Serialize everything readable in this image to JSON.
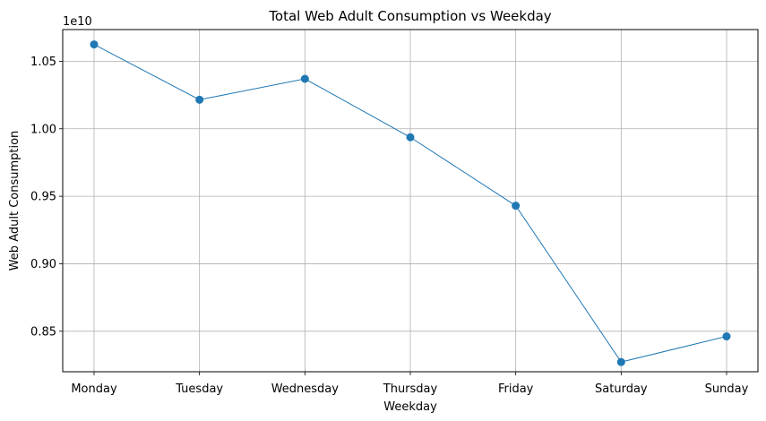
{
  "chart_data": {
    "type": "line",
    "title": "Total Web Adult Consumption vs Weekday",
    "xlabel": "Weekday",
    "ylabel": "Web Adult Consumption",
    "y_offset_label": "1e10",
    "categories": [
      "Monday",
      "Tuesday",
      "Wednesday",
      "Thursday",
      "Friday",
      "Saturday",
      "Sunday"
    ],
    "series": [
      {
        "values": [
          10625000000,
          10215000000,
          10370000000,
          9937000000,
          9430000000,
          8272000000,
          8462000000
        ],
        "color": "#1f77b4",
        "marker": "circle"
      }
    ],
    "yticks": [
      8500000000.0,
      9000000000.0,
      9500000000.0,
      10000000000.0,
      10500000000.0
    ],
    "ytick_labels": [
      "0.85",
      "0.90",
      "0.95",
      "1.00",
      "1.05"
    ],
    "ylim": [
      8200000000,
      10735000000
    ],
    "grid": true
  }
}
